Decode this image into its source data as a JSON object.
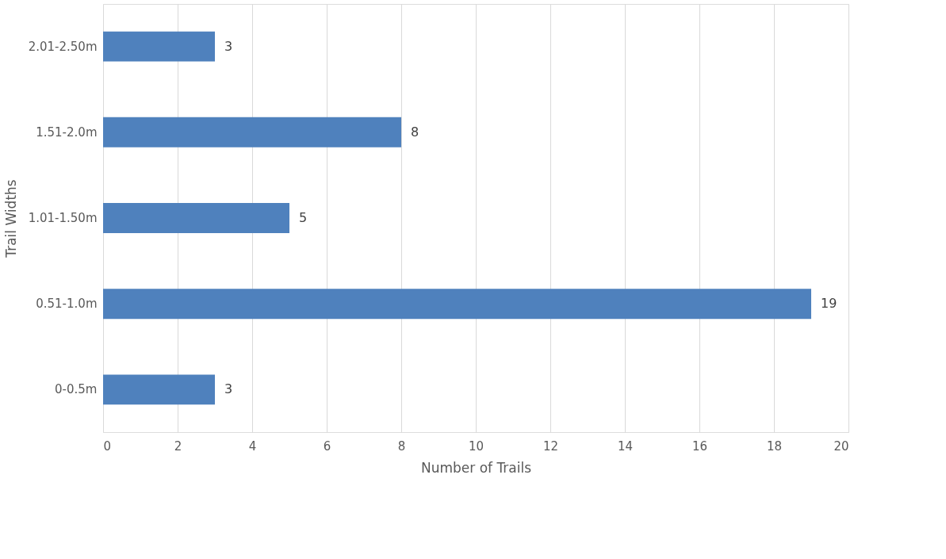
{
  "chart_data": {
    "type": "bar",
    "orientation": "horizontal",
    "xlabel": "Number of Trails",
    "ylabel": "Trail Widths",
    "categories": [
      "2.01-2.50m",
      "1.51-2.0m",
      "1.01-1.50m",
      "0.51-1.0m",
      "0-0.5m"
    ],
    "values": [
      3,
      8,
      5,
      19,
      3
    ],
    "color": "#4f81bd",
    "xlim": [
      0,
      20
    ],
    "xticks": [
      0,
      2,
      4,
      6,
      8,
      10,
      12,
      14,
      16,
      18,
      20
    ],
    "grid": "x",
    "data_labels": true
  }
}
